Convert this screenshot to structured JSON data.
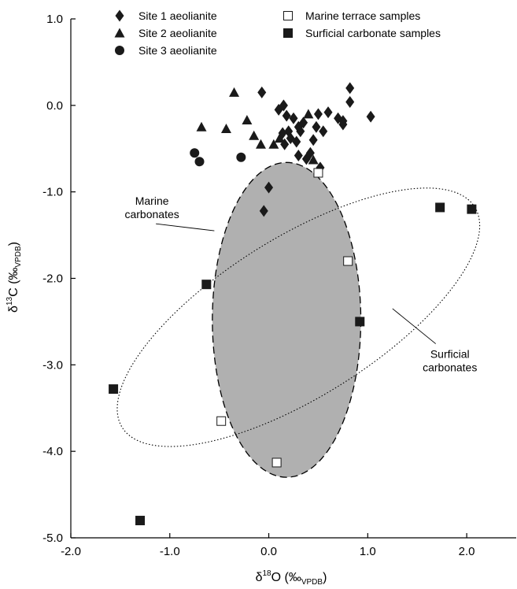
{
  "chart_data": {
    "type": "scatter",
    "title": "",
    "xlabel": {
      "delta": "δ",
      "sup": "18",
      "main": "O (‰",
      "sub": "VPDB",
      "close": ")"
    },
    "ylabel": {
      "delta": "δ",
      "sup": "13",
      "main": "C (‰",
      "sub": "VPDB",
      "close": ")"
    },
    "xlim": [
      -2.0,
      2.5
    ],
    "ylim": [
      -5.0,
      1.0
    ],
    "xticks": [
      -2.0,
      -1.0,
      0.0,
      1.0,
      2.0
    ],
    "xtick_labels": [
      "-2.0",
      "-1.0",
      "0.0",
      "1.0",
      "2.0"
    ],
    "yticks": [
      1.0,
      0.0,
      -1.0,
      -2.0,
      -3.0,
      -4.0,
      -5.0
    ],
    "ytick_labels": [
      "1.0",
      "0.0",
      "-1.0",
      "-2.0",
      "-3.0",
      "-4.0",
      "-5.0"
    ],
    "grid": false,
    "legend_position": "top",
    "series": [
      {
        "name": "Site 1 aeolianite",
        "marker": "diamond",
        "color": "#1a1a1a",
        "points": [
          [
            -0.05,
            -1.22
          ],
          [
            0.0,
            -0.95
          ],
          [
            -0.07,
            0.15
          ],
          [
            0.1,
            -0.05
          ],
          [
            0.15,
            0.0
          ],
          [
            0.18,
            -0.12
          ],
          [
            0.2,
            -0.3
          ],
          [
            0.22,
            -0.38
          ],
          [
            0.25,
            -0.15
          ],
          [
            0.28,
            -0.42
          ],
          [
            0.3,
            -0.25
          ],
          [
            0.32,
            -0.3
          ],
          [
            0.35,
            -0.2
          ],
          [
            0.3,
            -0.58
          ],
          [
            0.38,
            -0.62
          ],
          [
            0.42,
            -0.55
          ],
          [
            0.45,
            -0.4
          ],
          [
            0.48,
            -0.25
          ],
          [
            0.5,
            -0.1
          ],
          [
            0.55,
            -0.3
          ],
          [
            0.52,
            -0.72
          ],
          [
            0.6,
            -0.08
          ],
          [
            0.7,
            -0.15
          ],
          [
            0.75,
            -0.18
          ],
          [
            0.75,
            -0.22
          ],
          [
            0.82,
            0.2
          ],
          [
            0.82,
            0.04
          ],
          [
            1.03,
            -0.13
          ],
          [
            0.14,
            -0.32
          ],
          [
            0.16,
            -0.45
          ]
        ]
      },
      {
        "name": "Site 2 aeolianite",
        "marker": "triangle",
        "color": "#1a1a1a",
        "points": [
          [
            -0.68,
            -0.25
          ],
          [
            -0.43,
            -0.27
          ],
          [
            -0.35,
            0.15
          ],
          [
            -0.22,
            -0.17
          ],
          [
            -0.15,
            -0.35
          ],
          [
            -0.08,
            -0.45
          ],
          [
            0.05,
            -0.45
          ],
          [
            0.11,
            -0.38
          ],
          [
            0.4,
            -0.1
          ],
          [
            0.45,
            -0.63
          ]
        ]
      },
      {
        "name": "Site 3 aeolianite",
        "marker": "circle",
        "color": "#1a1a1a",
        "points": [
          [
            -0.75,
            -0.55
          ],
          [
            -0.7,
            -0.65
          ],
          [
            -0.28,
            -0.6
          ]
        ]
      },
      {
        "name": "Marine terrace samples",
        "marker": "square-open",
        "color": "#1a1a1a",
        "points": [
          [
            0.5,
            -0.78
          ],
          [
            0.8,
            -1.8
          ],
          [
            -0.48,
            -3.65
          ],
          [
            0.08,
            -4.13
          ]
        ]
      },
      {
        "name": "Surficial carbonate samples",
        "marker": "square-filled",
        "color": "#1a1a1a",
        "points": [
          [
            1.73,
            -1.18
          ],
          [
            2.05,
            -1.2
          ],
          [
            -0.63,
            -2.07
          ],
          [
            0.92,
            -2.5
          ],
          [
            -1.57,
            -3.28
          ],
          [
            -1.3,
            -4.8
          ]
        ]
      }
    ],
    "annotations": [
      {
        "text_lines": [
          "Marine",
          "carbonates"
        ],
        "at": [
          -1.18,
          -1.15
        ],
        "arrow_to": [
          -0.55,
          -1.45
        ]
      },
      {
        "text_lines": [
          "Surficial",
          "carbonates"
        ],
        "at": [
          1.83,
          -2.92
        ],
        "arrow_to": [
          1.25,
          -2.35
        ]
      }
    ],
    "regions": [
      {
        "name": "Marine carbonates",
        "shape": "ellipse",
        "center": [
          0.18,
          -2.48
        ],
        "radii": [
          0.75,
          1.82
        ],
        "rotation_deg": 0,
        "fill": "#b0b0b0",
        "stroke": "dashed"
      },
      {
        "name": "Surficial carbonates",
        "shape": "ellipse",
        "center": [
          0.3,
          -2.45
        ],
        "radii": [
          2.1,
          0.92
        ],
        "rotation_deg": 32,
        "fill": "none",
        "stroke": "dotted"
      }
    ]
  }
}
